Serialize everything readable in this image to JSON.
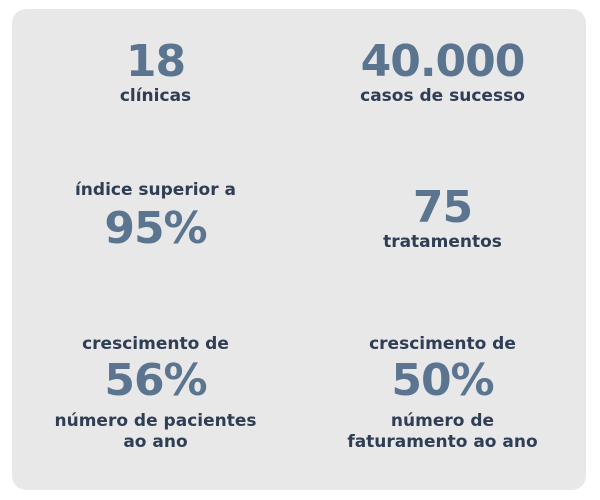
{
  "stats": [
    {
      "value": "18",
      "label": "clínicas"
    },
    {
      "value": "40.000",
      "label": "casos de sucesso"
    },
    {
      "prefix": "índice superior a",
      "value": "95%"
    },
    {
      "value": "75",
      "label": "tratamentos"
    },
    {
      "prefix": "crescimento de",
      "value": "56%",
      "suffix_line1": "número de pacientes",
      "suffix_line2": "ao ano"
    },
    {
      "prefix": "crescimento de",
      "value": "50%",
      "suffix_line1": "número de",
      "suffix_line2": "faturamento ao ano"
    }
  ],
  "colors": {
    "card_background": "#e8e8e8",
    "number": "#5b7591",
    "text": "#2f3d55"
  }
}
